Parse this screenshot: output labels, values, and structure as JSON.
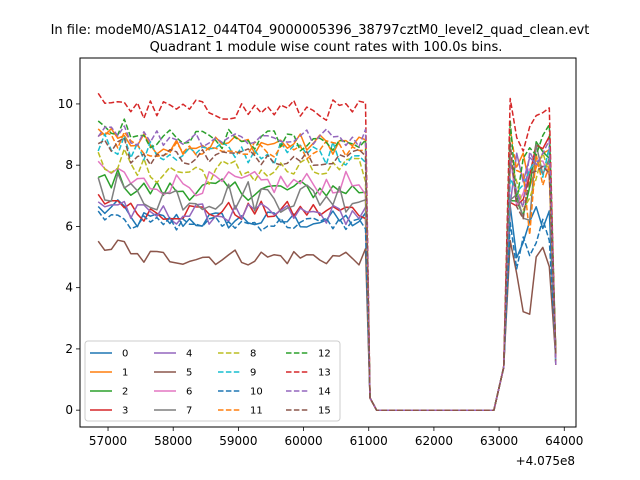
{
  "figure": {
    "suptitle": "In file: modeM0/AS1A12_044T04_9000005396_38797cztM0_level2_quad_clean.evt",
    "offset_label": "+4.075e8"
  },
  "chart_data": {
    "type": "line",
    "title": "Quadrant 1 module wise count rates with 100.0s bins.",
    "xlabel": "",
    "ylabel": "",
    "x_offset": 407500000,
    "xlim": [
      56570,
      64180
    ],
    "ylim": [
      -0.55,
      11.5
    ],
    "xticks": [
      57000,
      58000,
      59000,
      60000,
      61000,
      62000,
      63000,
      64000
    ],
    "yticks": [
      0,
      2,
      4,
      6,
      8,
      10
    ],
    "legend_position": "lower-left",
    "legend_ncol": 4,
    "time_segments": [
      {
        "x_start": 56850,
        "x_end": 60950,
        "step": 100
      },
      {
        "x_start": 61020,
        "x_end": 62990,
        "step": 100
      },
      {
        "x_start": 63070,
        "x_end": 63870,
        "step": 100
      }
    ],
    "series": [
      {
        "name": "0",
        "color": "#1f77b4",
        "dash": "solid",
        "level": 6.2,
        "noise": 0.32,
        "gap_level": 6.1,
        "peak": 6.4
      },
      {
        "name": "1",
        "color": "#ff7f0e",
        "dash": "solid",
        "level": 8.7,
        "noise": 0.35,
        "gap_level": 8.3,
        "peak": 8.3
      },
      {
        "name": "2",
        "color": "#2ca02c",
        "dash": "solid",
        "level": 7.2,
        "noise": 0.35,
        "gap_level": 7.3,
        "peak": 8.2
      },
      {
        "name": "3",
        "color": "#d62728",
        "dash": "solid",
        "level": 6.5,
        "noise": 0.33,
        "gap_level": 6.3,
        "peak": 8.7
      },
      {
        "name": "4",
        "color": "#9467bd",
        "dash": "solid",
        "level": 6.4,
        "noise": 0.35,
        "gap_level": 6.3,
        "peak": 8.4
      },
      {
        "name": "5",
        "color": "#8c564b",
        "dash": "solid",
        "level": 5.0,
        "noise": 0.28,
        "gap_level": 5.0,
        "peak": 4.8
      },
      {
        "name": "6",
        "color": "#e377c2",
        "dash": "solid",
        "level": 7.4,
        "noise": 0.4,
        "gap_level": 7.6,
        "peak": 7.8
      },
      {
        "name": "7",
        "color": "#7f7f7f",
        "dash": "solid",
        "level": 7.0,
        "noise": 0.55,
        "gap_level": 7.0,
        "peak": 8.2
      },
      {
        "name": "8",
        "color": "#bcbd22",
        "dash": "dashed",
        "level": 7.8,
        "noise": 0.45,
        "gap_level": 8.0,
        "peak": 8.0
      },
      {
        "name": "9",
        "color": "#17becf",
        "dash": "dashed",
        "level": 8.4,
        "noise": 0.4,
        "gap_level": 7.8,
        "peak": 8.2
      },
      {
        "name": "10",
        "color": "#1f77b4",
        "dash": "dashed",
        "level": 6.1,
        "noise": 0.25,
        "gap_level": 6.0,
        "peak": 5.8
      },
      {
        "name": "11",
        "color": "#ff7f0e",
        "dash": "dashed",
        "level": 8.5,
        "noise": 0.3,
        "gap_level": 8.3,
        "peak": 7.8
      },
      {
        "name": "12",
        "color": "#2ca02c",
        "dash": "dashed",
        "level": 8.8,
        "noise": 0.38,
        "gap_level": 8.7,
        "peak": 8.8
      },
      {
        "name": "13",
        "color": "#d62728",
        "dash": "dashed",
        "level": 9.8,
        "noise": 0.35,
        "gap_level": 9.5,
        "peak": 9.4
      },
      {
        "name": "14",
        "color": "#9467bd",
        "dash": "dashed",
        "level": 8.9,
        "noise": 0.32,
        "gap_level": 8.9,
        "peak": 8.6
      },
      {
        "name": "15",
        "color": "#8c564b",
        "dash": "dashed",
        "level": 8.3,
        "noise": 0.3,
        "gap_level": 8.4,
        "peak": 8.2
      }
    ]
  }
}
